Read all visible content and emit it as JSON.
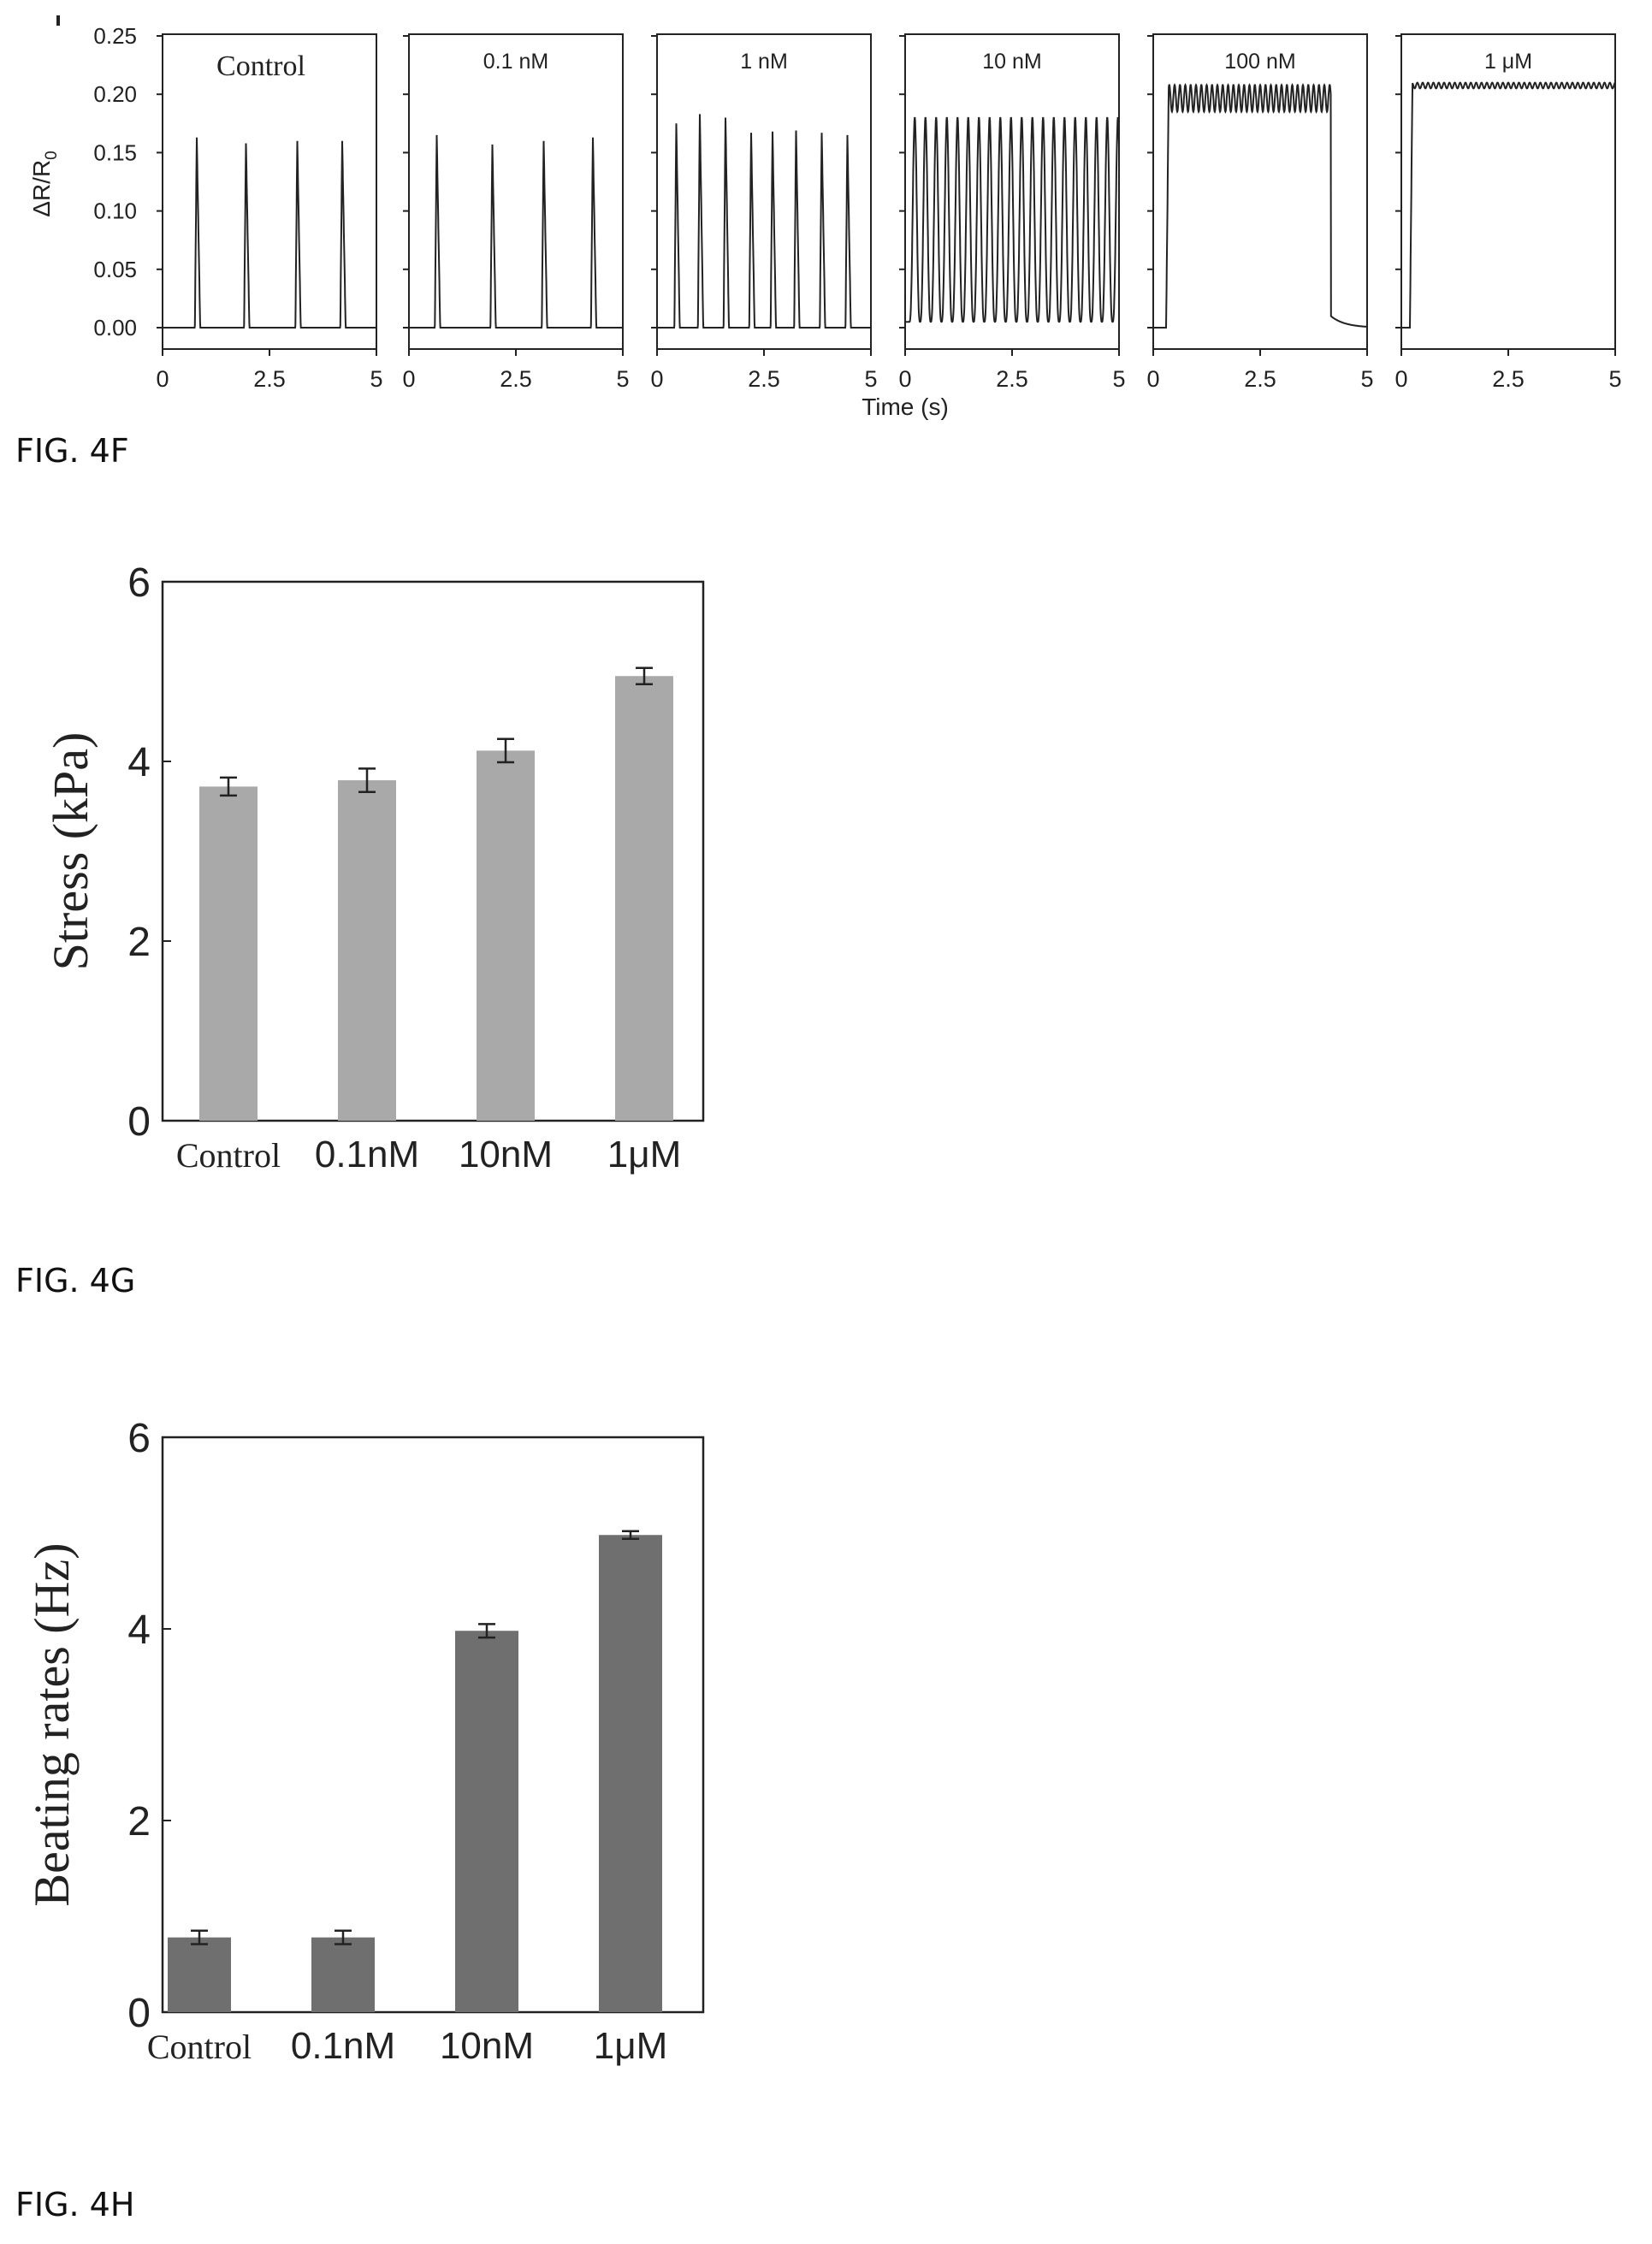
{
  "panels": {
    "f": {
      "caption": "FIG. 4F"
    },
    "g": {
      "caption": "FIG. 4G"
    },
    "h": {
      "caption": "FIG. 4H"
    }
  },
  "chart_data": [
    {
      "type": "line",
      "panel": "FIG. 4F",
      "ylabel_main": "ΔR/R",
      "ylabel_sub": "0",
      "xlabel": "Time (s)",
      "ylim": [
        0,
        0.25
      ],
      "xlim": [
        0,
        5
      ],
      "yticks": [
        "0.00",
        "0.05",
        "0.10",
        "0.15",
        "0.20",
        "0.25"
      ],
      "xticks": [
        "0",
        "2.5",
        "5"
      ],
      "trace_color": "#222222",
      "subplots": [
        {
          "name": "Control",
          "mode": "peaks",
          "baseline": 0.0,
          "peaks": [
            [
              0.8,
              0.163
            ],
            [
              1.95,
              0.158
            ],
            [
              3.15,
              0.16
            ],
            [
              4.2,
              0.16
            ]
          ]
        },
        {
          "name": "0.1 nM",
          "mode": "peaks",
          "baseline": 0.0,
          "peaks": [
            [
              0.65,
              0.165
            ],
            [
              1.95,
              0.157
            ],
            [
              3.15,
              0.16
            ],
            [
              4.3,
              0.163
            ]
          ]
        },
        {
          "name": "1 nM",
          "mode": "peaks",
          "baseline": 0.0,
          "peaks": [
            [
              0.45,
              0.175
            ],
            [
              1.0,
              0.183
            ],
            [
              1.6,
              0.18
            ],
            [
              2.2,
              0.167
            ],
            [
              2.7,
              0.168
            ],
            [
              3.25,
              0.169
            ],
            [
              3.85,
              0.167
            ],
            [
              4.45,
              0.165
            ]
          ]
        },
        {
          "name": "10 nM",
          "mode": "oscillation",
          "baseline": 0.005,
          "amplitude_top": 0.18,
          "beat_hz": 4.0,
          "start": 0.1,
          "end": 5.0
        },
        {
          "name": "100 nM",
          "mode": "plateau",
          "baseline": 0.0,
          "plateau_low": 0.185,
          "plateau_high": 0.208,
          "beat_hz": 5.0,
          "start": 0.3,
          "end": 4.15
        },
        {
          "name": "1 μM",
          "mode": "plateau",
          "baseline": 0.0,
          "plateau_low": 0.205,
          "plateau_high": 0.21,
          "beat_hz": 5.0,
          "start": 0.2,
          "end": 5.0
        }
      ]
    },
    {
      "type": "bar",
      "panel": "FIG. 4G",
      "ylabel": "Stress (kPa)",
      "categories": [
        "Control",
        "0.1nM",
        "10nM",
        "1μM"
      ],
      "values": [
        3.72,
        3.79,
        4.12,
        4.95
      ],
      "errors": [
        0.1,
        0.13,
        0.13,
        0.09
      ],
      "ylim": [
        0,
        6
      ],
      "yticks": [
        "0",
        "2",
        "4",
        "6"
      ],
      "bar_color": "#a9a9a9"
    },
    {
      "type": "bar",
      "panel": "FIG. 4H",
      "ylabel": "Beating rates (Hz)",
      "categories": [
        "Control",
        "0.1nM",
        "10nM",
        "1μM"
      ],
      "values": [
        0.78,
        0.78,
        3.98,
        4.98
      ],
      "errors": [
        0.07,
        0.07,
        0.07,
        0.04
      ],
      "ylim": [
        0,
        6
      ],
      "yticks": [
        "0",
        "2",
        "4",
        "6"
      ],
      "bar_color": "#6f6f6f"
    }
  ]
}
